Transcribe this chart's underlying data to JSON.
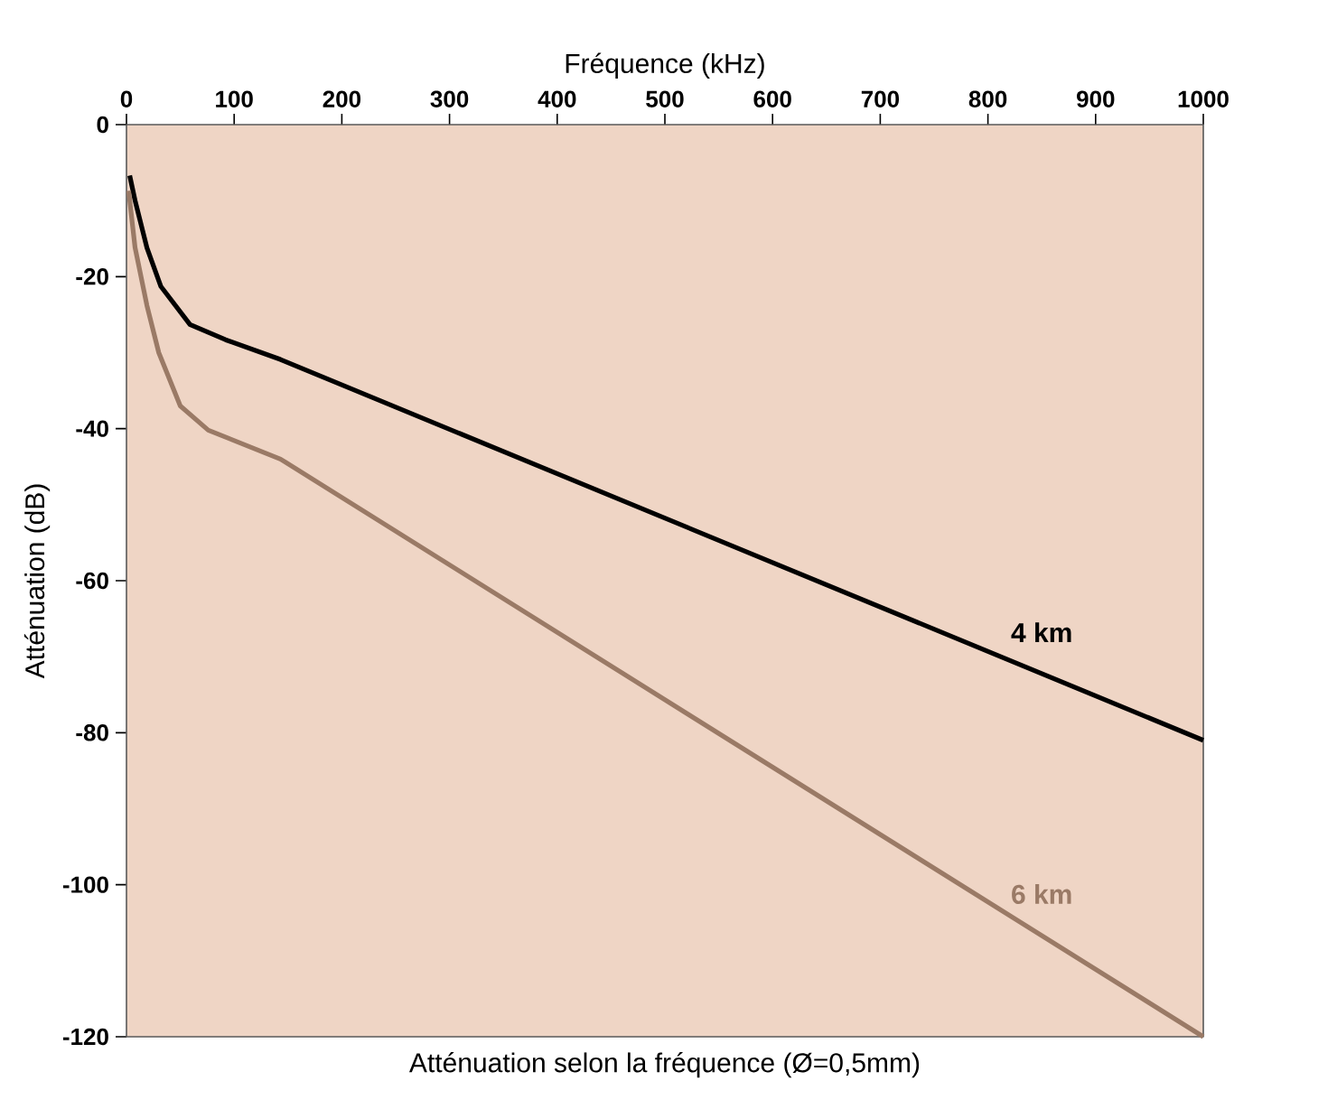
{
  "chart_data": {
    "type": "line",
    "xlabel": "Fréquence (kHz)",
    "ylabel": "Atténuation (dB)",
    "annotations": [
      "Atténuation selon la fréquence (Ø=0,5mm)"
    ],
    "xlim": [
      0,
      1000
    ],
    "ylim": [
      -120,
      0
    ],
    "xticks": [
      0,
      100,
      200,
      300,
      400,
      500,
      600,
      700,
      800,
      900,
      1000
    ],
    "yticks": [
      0,
      -20,
      -40,
      -60,
      -80,
      -100,
      -120
    ],
    "grid": false,
    "legend": false,
    "marker": "none",
    "line_style": "solid",
    "series": [
      {
        "name": "4 km",
        "color": "#000000",
        "x": [
          3,
          8,
          19,
          32,
          59,
          92,
          143,
          1000
        ],
        "values": [
          -6.7,
          -10,
          -16.2,
          -21.3,
          -26.3,
          -28.3,
          -30.9,
          -81
        ]
      },
      {
        "name": "6 km",
        "color": "#9a7a66",
        "x": [
          2,
          8,
          19,
          30,
          50,
          76,
          143,
          1000
        ],
        "values": [
          -8.7,
          -16.2,
          -23.8,
          -30,
          -37,
          -40.2,
          -44,
          -120
        ]
      }
    ]
  }
}
